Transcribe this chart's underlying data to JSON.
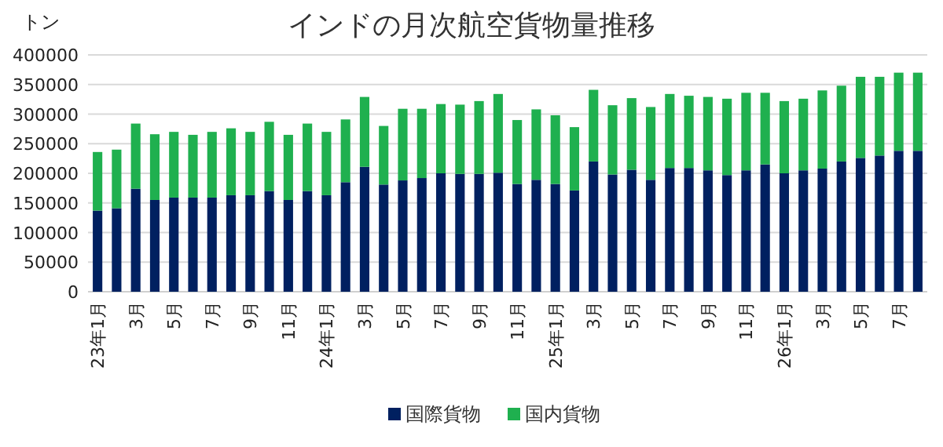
{
  "chart_data": {
    "type": "bar",
    "title": "インドの月次航空貨物量推移",
    "ylabel": "トン",
    "categories": [
      "23年1月",
      null,
      "3月",
      null,
      "5月",
      null,
      "7月",
      null,
      "9月",
      null,
      "11月",
      null,
      "24年1月",
      null,
      "3月",
      null,
      "5月",
      null,
      "7月",
      null,
      "9月",
      null,
      "11月",
      null,
      "25年1月",
      null,
      "3月",
      null,
      "5月",
      null,
      "7月",
      null,
      "9月",
      null,
      "11月",
      null,
      "26年1月",
      null,
      "3月",
      null,
      "5月",
      null,
      "7月",
      null
    ],
    "stacked": true,
    "series": [
      {
        "name": "国際貨物",
        "color": "#002060",
        "values": [
          137000,
          141000,
          174000,
          155000,
          159000,
          159000,
          159000,
          163000,
          163000,
          170000,
          155000,
          170000,
          163000,
          185000,
          211000,
          181000,
          188000,
          192000,
          200000,
          199000,
          199000,
          201000,
          182000,
          189000,
          182000,
          171000,
          220000,
          198000,
          206000,
          189000,
          209000,
          209000,
          205000,
          197000,
          205000,
          215000,
          200000,
          205000,
          208000,
          220000,
          226000,
          230000,
          238000,
          238000
        ]
      },
      {
        "name": "国内貨物",
        "color": "#1fb04f",
        "values": [
          99000,
          99000,
          110000,
          111000,
          111000,
          106000,
          111000,
          113000,
          107000,
          117000,
          110000,
          114000,
          107000,
          106000,
          118000,
          99000,
          121000,
          117000,
          117000,
          117000,
          123000,
          133000,
          108000,
          119000,
          116000,
          107000,
          121000,
          117000,
          121000,
          123000,
          125000,
          122000,
          124000,
          129000,
          131000,
          121000,
          122000,
          121000,
          132000,
          128000,
          137000,
          133000,
          132000,
          132000
        ]
      }
    ],
    "ylim": [
      0,
      400000
    ],
    "yticks": [
      0,
      50000,
      100000,
      150000,
      200000,
      250000,
      300000,
      350000,
      400000
    ],
    "grid": "y",
    "legend": "bottom"
  }
}
